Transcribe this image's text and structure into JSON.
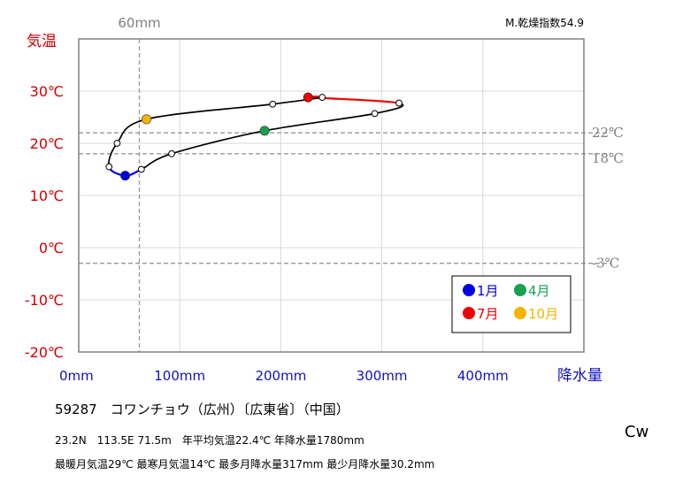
{
  "chart_data": {
    "type": "line",
    "corner_label": "M.乾燥指数54.9",
    "y_axis_title": "気温",
    "x_axis_title": "降水量",
    "y_ticks": [
      "30℃",
      "20℃",
      "10℃",
      "0℃",
      "-10℃",
      "-20℃"
    ],
    "x_ticks": [
      "0mm",
      "100mm",
      "200mm",
      "300mm",
      "400mm"
    ],
    "xlim": [
      0,
      500
    ],
    "ylim": [
      -20,
      40
    ],
    "x_unit": "mm",
    "y_unit": "℃",
    "reference_vertical": {
      "value": 60,
      "label": "60mm"
    },
    "reference_horizontal": [
      {
        "value": 22,
        "label": "22℃"
      },
      {
        "value": 18,
        "label": "18℃"
      },
      {
        "value": -3,
        "label": "-3℃"
      }
    ],
    "monthly": [
      {
        "month": 1,
        "precip": 46,
        "temp": 13.8
      },
      {
        "month": 2,
        "precip": 62,
        "temp": 15.0
      },
      {
        "month": 3,
        "precip": 92,
        "temp": 18.0
      },
      {
        "month": 4,
        "precip": 184,
        "temp": 22.4
      },
      {
        "month": 5,
        "precip": 293,
        "temp": 25.7
      },
      {
        "month": 6,
        "precip": 317,
        "temp": 27.7
      },
      {
        "month": 7,
        "precip": 227,
        "temp": 28.8
      },
      {
        "month": 8,
        "precip": 241,
        "temp": 28.8
      },
      {
        "month": 9,
        "precip": 192,
        "temp": 27.5
      },
      {
        "month": 10,
        "precip": 67,
        "temp": 24.6
      },
      {
        "month": 11,
        "precip": 38,
        "temp": 20.0
      },
      {
        "month": 12,
        "precip": 30,
        "temp": 15.5
      }
    ],
    "legend": [
      {
        "label": "1月",
        "month": 1,
        "color": "#0000e0"
      },
      {
        "label": "4月",
        "month": 4,
        "color": "#1aa050"
      },
      {
        "label": "7月",
        "month": 7,
        "color": "#ee0000"
      },
      {
        "label": "10月",
        "month": 10,
        "color": "#f5b400"
      }
    ],
    "colors": {
      "axis_title_temp": "#d00000",
      "axis_title_precip": "#1010c0",
      "curve": "#000000",
      "ref_line": "#999999"
    }
  },
  "info": {
    "station": "59287　コワンチョウ（広州）〔広東省〕（中国）",
    "line1": "23.2N　113.5E 71.5m　年平均気温22.4℃ 年降水量1780mm",
    "line2": "最暖月気温29℃ 最寒月気温14℃ 最多月降水量317mm 最少月降水量30.2mm",
    "climate": "Cw"
  }
}
